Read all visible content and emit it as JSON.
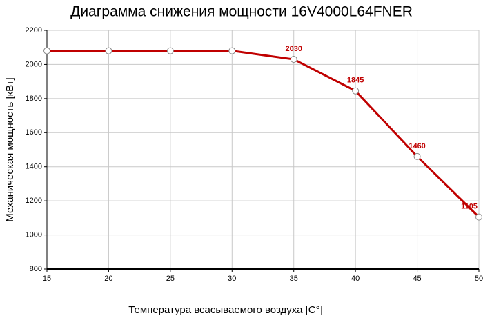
{
  "chart_data": {
    "type": "line",
    "title": "Диаграмма снижения мощности 16V4000L64FNER",
    "x_label": "Температура всасываемого воздуха [C°]",
    "y_label": "Механическая мощность [кВт]",
    "x": [
      15,
      20,
      25,
      30,
      35,
      40,
      45,
      50
    ],
    "series": [
      {
        "name": "16V4000L64FNER",
        "color": "#c00000",
        "values": [
          2080,
          2080,
          2080,
          2080,
          2030,
          1845,
          1460,
          1105
        ],
        "value_labels": [
          null,
          null,
          null,
          null,
          "2030",
          "1845",
          "1460",
          "1105"
        ]
      }
    ],
    "xlim": [
      15,
      50
    ],
    "xticks": [
      15,
      20,
      25,
      30,
      35,
      40,
      45,
      50
    ],
    "ylim": [
      800,
      2200
    ],
    "yticks": [
      800,
      1000,
      1200,
      1400,
      1600,
      1800,
      2000,
      2200
    ],
    "grid": true
  }
}
